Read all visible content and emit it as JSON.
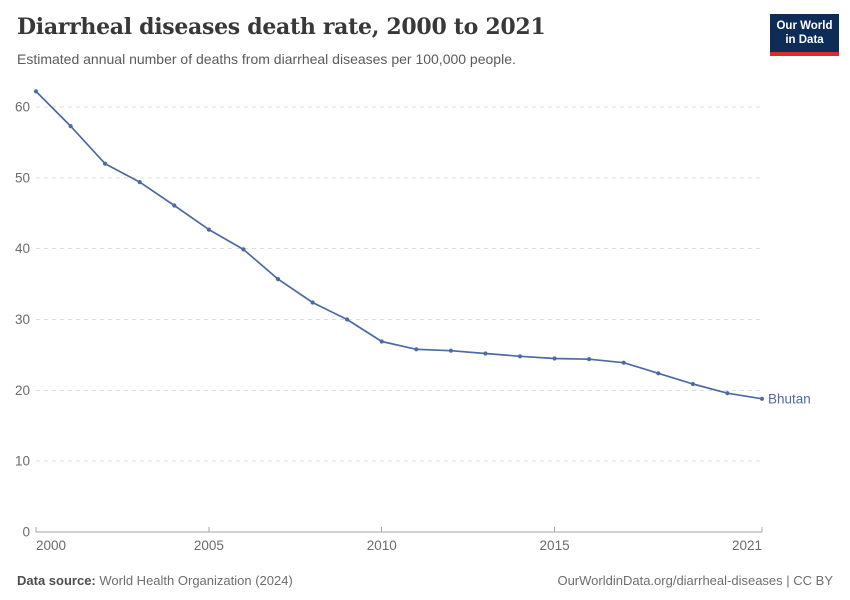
{
  "header": {
    "title": "Diarrheal diseases death rate, 2000 to 2021",
    "subtitle": "Estimated annual number of deaths from diarrheal diseases per 100,000 people.",
    "logo": {
      "line1": "Our World",
      "line2": "in Data"
    }
  },
  "chart_data": {
    "type": "line",
    "title": "Diarrheal diseases death rate, 2000 to 2021",
    "xlabel": "",
    "ylabel": "",
    "x": [
      2000,
      2001,
      2002,
      2003,
      2004,
      2005,
      2006,
      2007,
      2008,
      2009,
      2010,
      2011,
      2012,
      2013,
      2014,
      2015,
      2016,
      2017,
      2018,
      2019,
      2020,
      2021
    ],
    "series": [
      {
        "name": "Bhutan",
        "values": [
          62.2,
          57.3,
          52.0,
          49.4,
          46.1,
          42.7,
          39.9,
          35.7,
          32.4,
          30.0,
          26.9,
          25.8,
          25.6,
          25.2,
          24.8,
          24.5,
          24.4,
          23.9,
          22.4,
          20.9,
          19.6,
          18.8
        ]
      }
    ],
    "xticks": [
      2000,
      2005,
      2010,
      2015,
      2021
    ],
    "yticks": [
      0,
      10,
      20,
      30,
      40,
      50,
      60
    ],
    "xlim": [
      2000,
      2021
    ],
    "ylim": [
      0,
      63
    ],
    "grid": "horizontal-dashed",
    "legend": "end-of-line-label"
  },
  "footer": {
    "source_label": "Data source:",
    "source_text": " World Health Organization (2024)",
    "license_text": "OurWorldinData.org/diarrheal-diseases | CC BY"
  },
  "colors": {
    "line": "#4c6ba3",
    "marker": "#4c6ba3",
    "entity_label": "#4c6ba3",
    "grid": "#dcdcdc",
    "axis": "#a5a5a5",
    "tick_label": "#6b6b6b",
    "title": "#383838",
    "subtitle": "#5b5b5b",
    "footer": "#6e6e6e",
    "logo_bg": "#0e2d56",
    "logo_red": "#dc2c27"
  }
}
